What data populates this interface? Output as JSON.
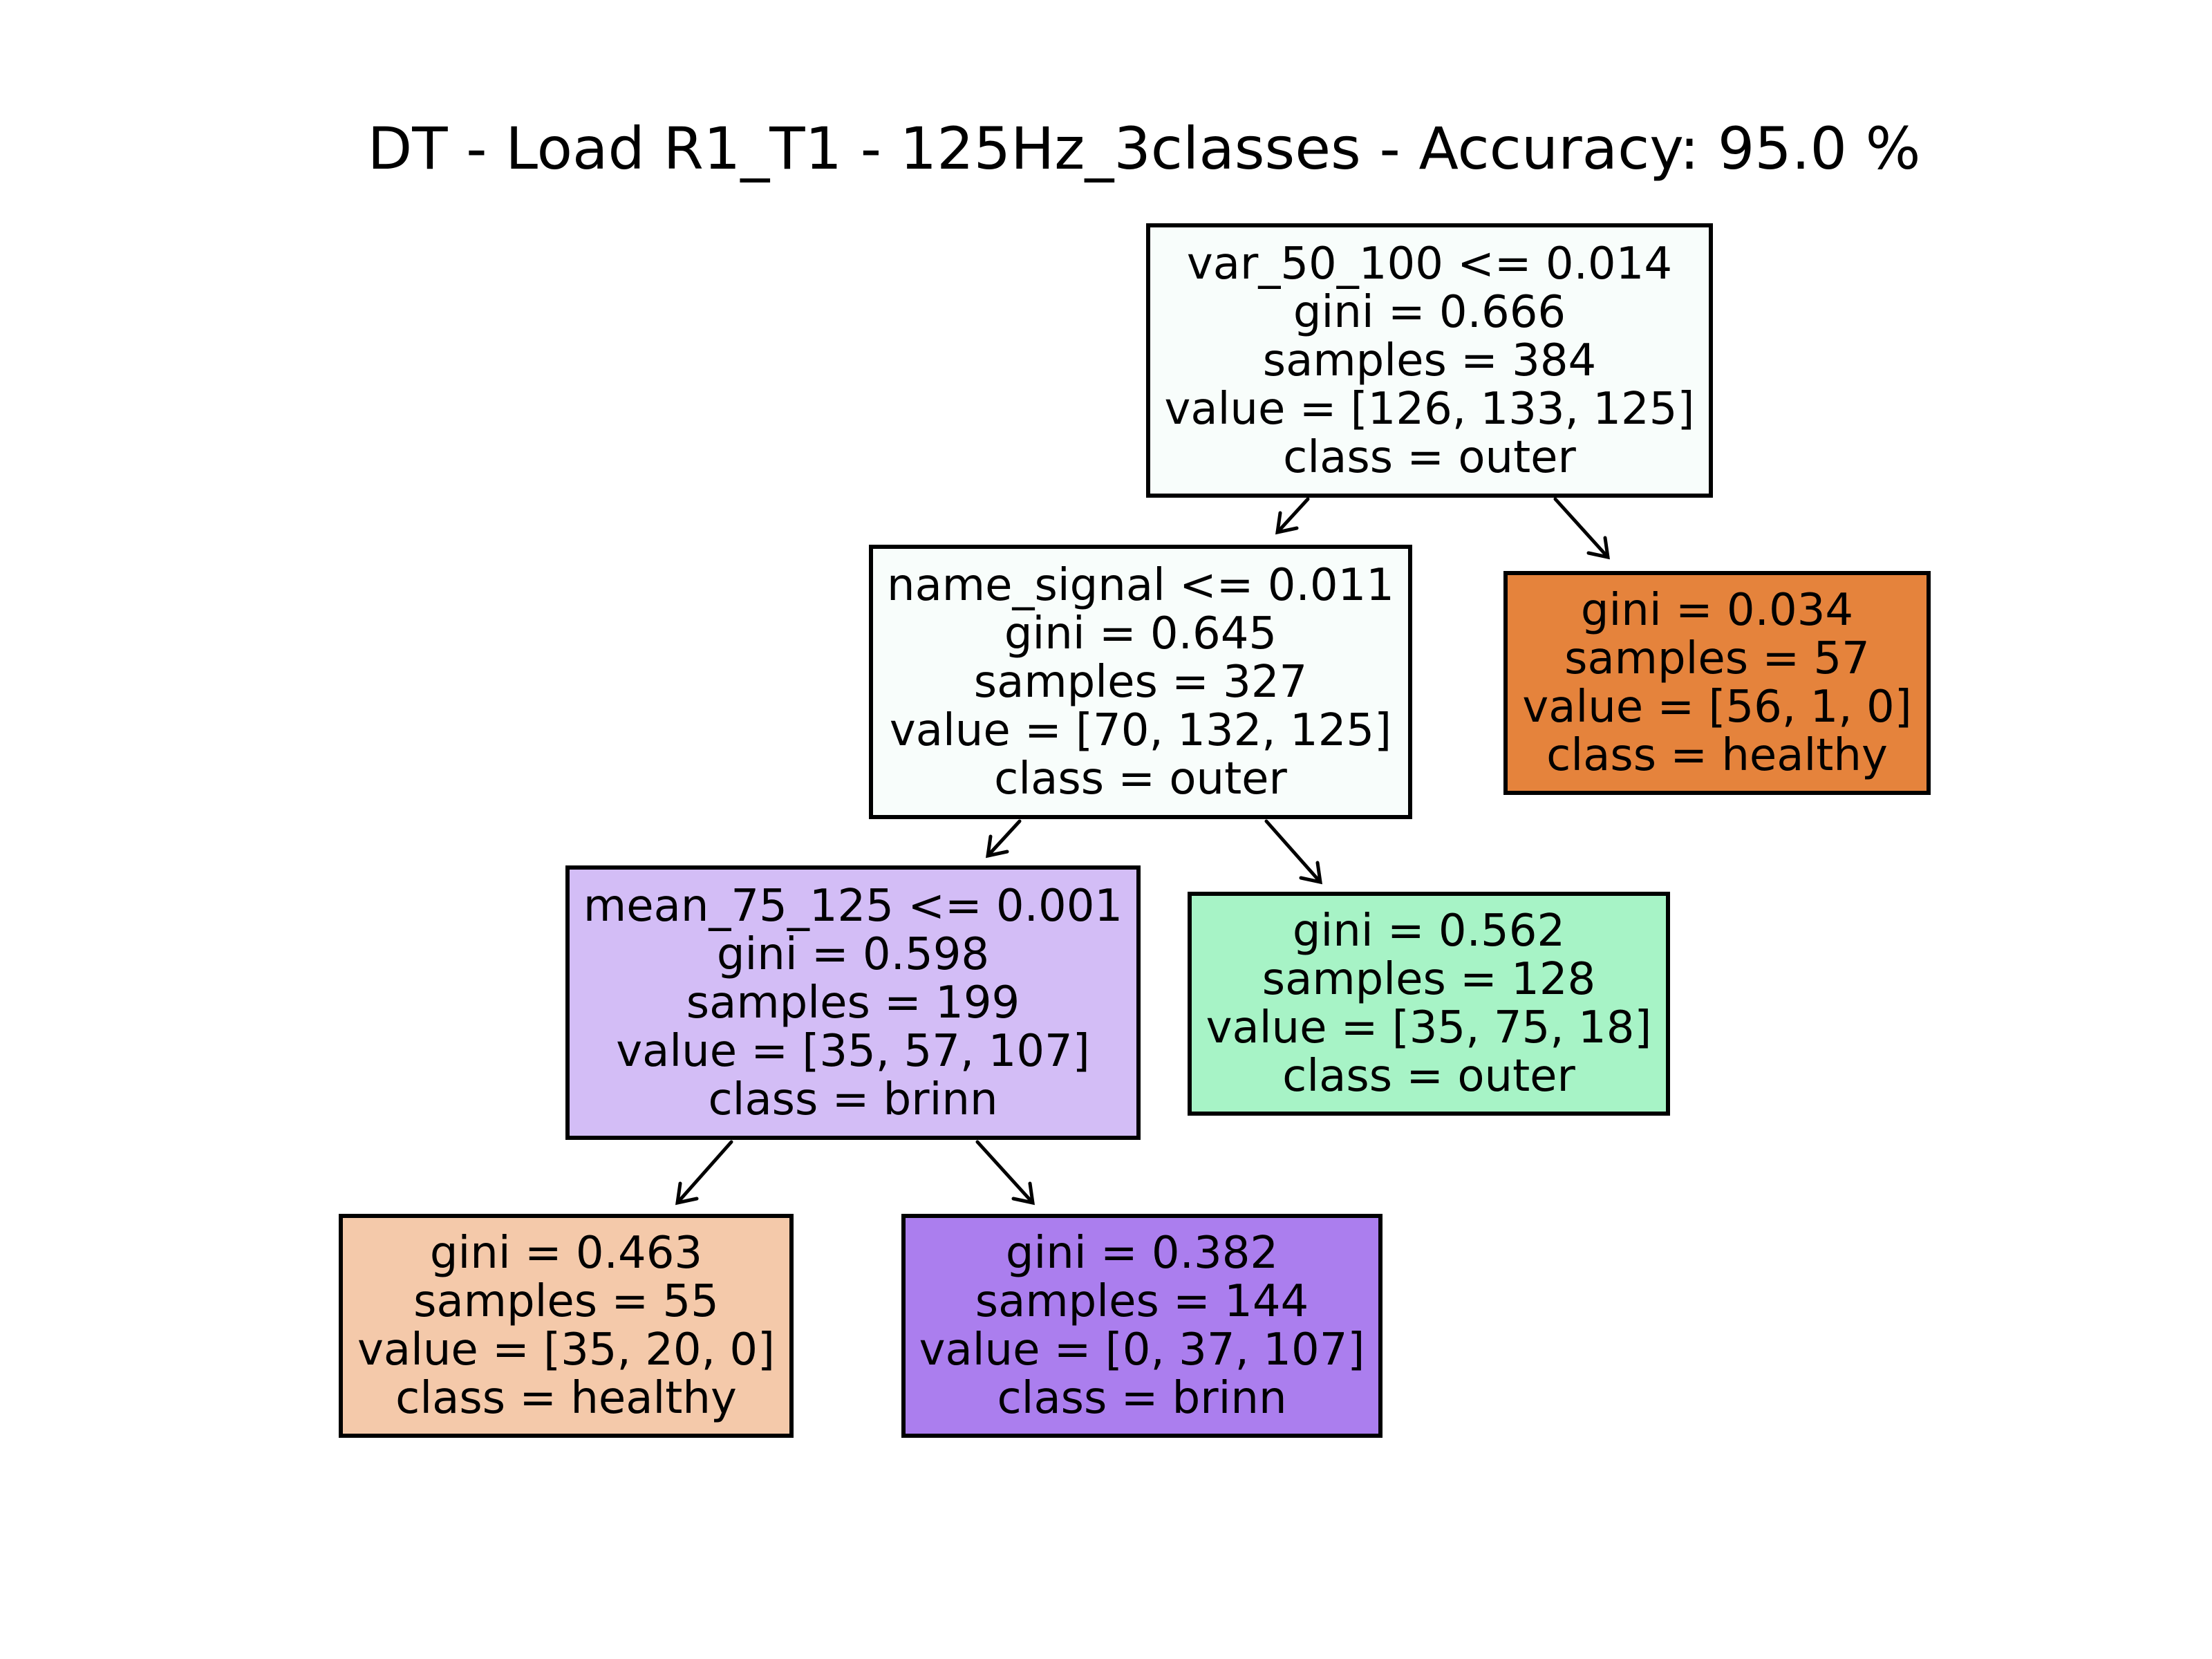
{
  "title": "DT - Load R1_T1 - 125Hz_3classes - Accuracy: 95.0 %",
  "nodes": {
    "root": {
      "lines": [
        "var_50_100 <= 0.014",
        "gini = 0.666",
        "samples = 384",
        "value = [126, 133, 125]",
        "class = outer"
      ],
      "fill": "#f8fdfb"
    },
    "n1": {
      "lines": [
        "name_signal <= 0.011",
        "gini = 0.645",
        "samples = 327",
        "value = [70, 132, 125]",
        "class = outer"
      ],
      "fill": "#f8fdfb"
    },
    "n2": {
      "lines": [
        "gini = 0.034",
        "samples = 57",
        "value = [56, 1, 0]",
        "class = healthy"
      ],
      "fill": "#e5833c"
    },
    "n3": {
      "lines": [
        "mean_75_125 <= 0.001",
        "gini = 0.598",
        "samples = 199",
        "value = [35, 57, 107]",
        "class = brinn"
      ],
      "fill": "#d3bdf6"
    },
    "n4": {
      "lines": [
        "gini = 0.562",
        "samples = 128",
        "value = [35, 75, 18]",
        "class = outer"
      ],
      "fill": "#a7f3c6"
    },
    "n5": {
      "lines": [
        "gini = 0.463",
        "samples = 55",
        "value = [35, 20, 0]",
        "class = healthy"
      ],
      "fill": "#f4c9aa"
    },
    "n6": {
      "lines": [
        "gini = 0.382",
        "samples = 144",
        "value = [0, 37, 107]",
        "class = brinn"
      ],
      "fill": "#ab7eee"
    }
  }
}
